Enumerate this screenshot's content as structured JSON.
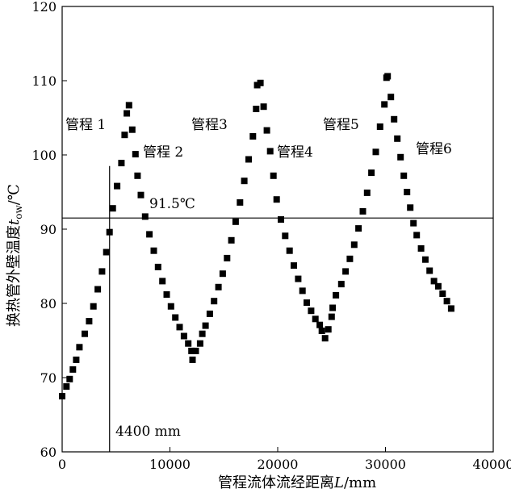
{
  "chart_data": {
    "type": "scatter",
    "xlabel": "管程流体流经距离L/mm",
    "ylabel": "换热管外壁温度t_ow/℃",
    "ylabel_parts": {
      "main": "换热管外壁温度",
      "var": "t",
      "sub": "ow",
      "unit": "/℃"
    },
    "xlabel_parts": {
      "main": "管程流体流经距离",
      "var": "L",
      "unit": "/mm"
    },
    "xlim": [
      0,
      40000
    ],
    "ylim": [
      60,
      120
    ],
    "xticks": [
      0,
      10000,
      20000,
      30000,
      40000
    ],
    "yticks": [
      60,
      70,
      80,
      90,
      100,
      110,
      120
    ],
    "grid": false,
    "marker": "square",
    "marker_color": "#000000",
    "x": [
      0,
      400,
      700,
      1000,
      1300,
      1600,
      2100,
      2500,
      2900,
      3300,
      3700,
      4100,
      4400,
      4700,
      5100,
      5500,
      5800,
      6000,
      6200,
      6500,
      6800,
      7000,
      7300,
      7700,
      8100,
      8500,
      8900,
      9300,
      9700,
      10100,
      10500,
      10900,
      11300,
      11700,
      12000,
      12100,
      12400,
      12800,
      13000,
      13300,
      13700,
      14100,
      14500,
      14900,
      15300,
      15700,
      16100,
      16500,
      16900,
      17300,
      17700,
      18000,
      18100,
      18400,
      18700,
      19000,
      19300,
      19600,
      19900,
      20300,
      20700,
      21100,
      21500,
      21900,
      22300,
      22700,
      23100,
      23500,
      23900,
      24100,
      24400,
      24700,
      25000,
      25100,
      25400,
      25900,
      26300,
      26700,
      27100,
      27500,
      27900,
      28300,
      28700,
      29100,
      29500,
      29900,
      30100,
      30200,
      30500,
      30800,
      31100,
      31400,
      31700,
      32000,
      32300,
      32600,
      32900,
      33300,
      33700,
      34100,
      34500,
      34900,
      35300,
      35700,
      36100
    ],
    "y": [
      67.5,
      68.8,
      69.8,
      71.1,
      72.4,
      74.1,
      75.9,
      77.6,
      79.6,
      81.9,
      84.3,
      86.9,
      89.6,
      92.8,
      95.8,
      98.9,
      102.7,
      105.6,
      106.7,
      103.4,
      100.1,
      97.2,
      94.6,
      91.7,
      89.3,
      87.1,
      84.9,
      83.0,
      81.2,
      79.6,
      78.1,
      76.8,
      75.6,
      74.6,
      73.6,
      72.4,
      73.6,
      74.6,
      75.9,
      77.0,
      78.6,
      80.3,
      82.2,
      84.0,
      86.1,
      88.5,
      91.0,
      93.6,
      96.5,
      99.4,
      102.5,
      106.2,
      109.4,
      109.7,
      106.5,
      103.3,
      100.5,
      97.2,
      94.0,
      91.3,
      89.1,
      87.1,
      85.1,
      83.3,
      81.7,
      80.1,
      79.0,
      77.9,
      77.1,
      76.3,
      75.3,
      76.5,
      78.2,
      79.4,
      81.1,
      82.6,
      84.3,
      86.0,
      87.9,
      90.1,
      92.4,
      94.9,
      97.6,
      100.4,
      103.8,
      106.8,
      110.4,
      110.6,
      107.8,
      104.8,
      102.2,
      99.7,
      97.2,
      95.0,
      92.9,
      90.8,
      89.2,
      87.4,
      85.9,
      84.4,
      83.0,
      82.3,
      81.3,
      80.3,
      79.3
    ]
  },
  "annotations": {
    "ref_line_label": "91.5℃",
    "ref_line_y": 91.5,
    "marker_line_label": "4400 mm",
    "marker_line_x": 4400,
    "marker_line_top_y": 98.5,
    "pass_labels": [
      "管程 1",
      "管程 2",
      "管程3",
      "管程4",
      "管程5",
      "管程6"
    ]
  }
}
